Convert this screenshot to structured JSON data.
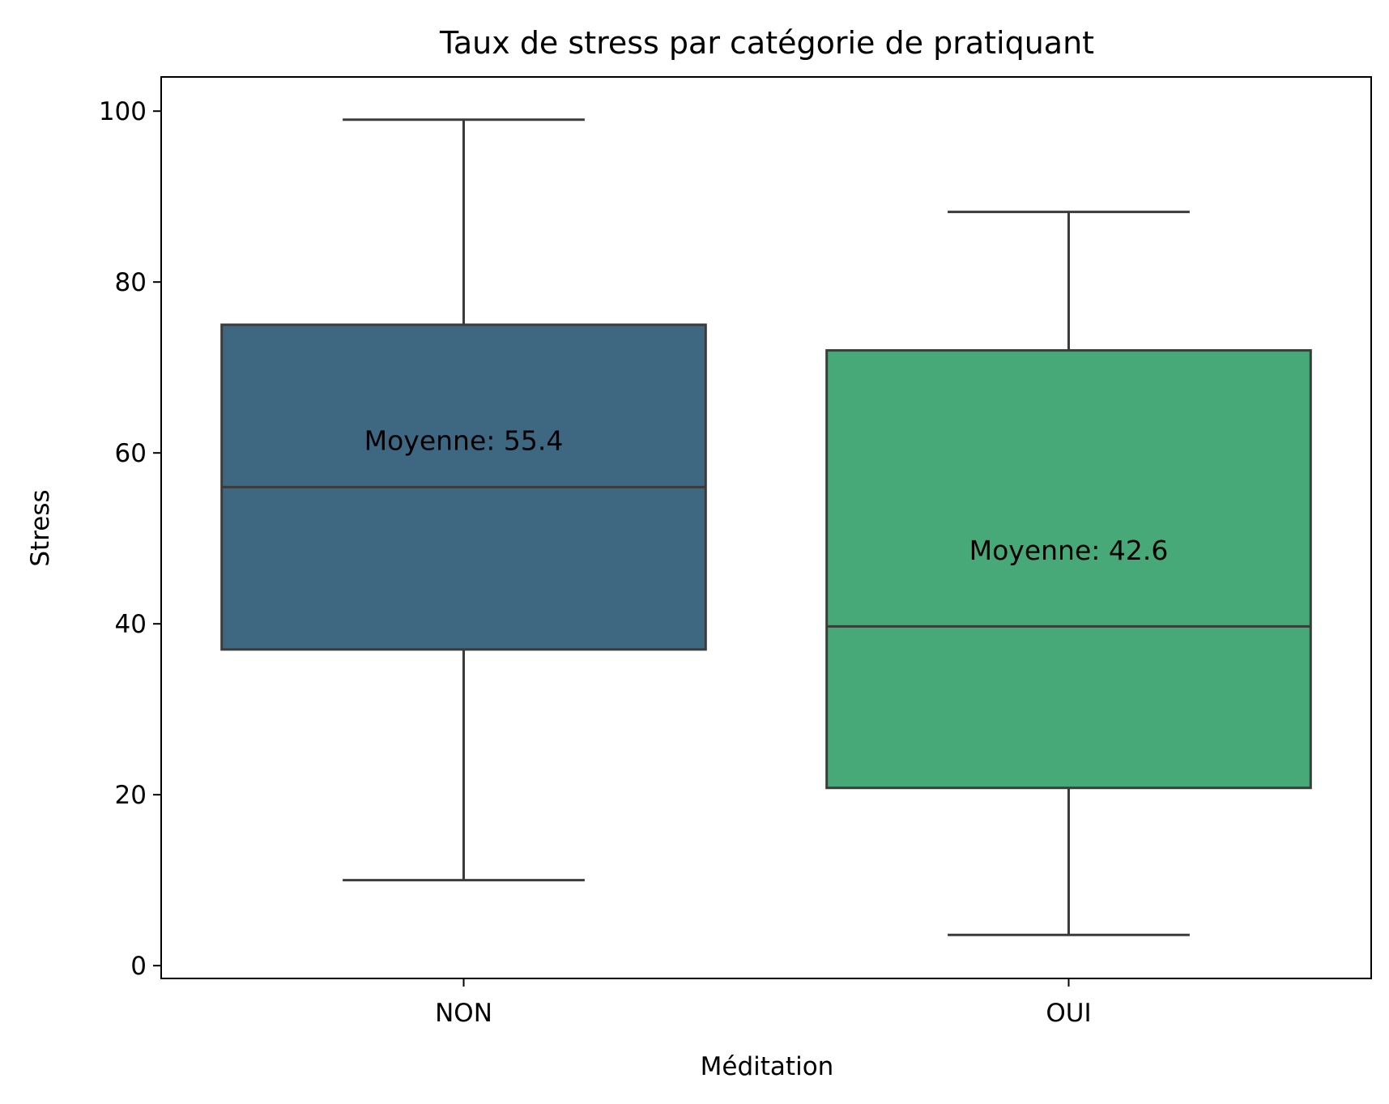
{
  "chart_data": {
    "type": "box",
    "title": "Taux de stress par catégorie de pratiquant",
    "xlabel": "Méditation",
    "ylabel": "Stress",
    "ylim": [
      -1.5,
      104
    ],
    "yticks": [
      0,
      20,
      40,
      60,
      80,
      100
    ],
    "grid": false,
    "categories": [
      "NON",
      "OUI"
    ],
    "boxes": [
      {
        "category": "NON",
        "whisker_low": 10,
        "q1": 37,
        "median": 56,
        "q3": 75,
        "whisker_high": 99,
        "mean": 55.4,
        "annotation": "Moyenne: 55.4",
        "color": "#3e6782"
      },
      {
        "category": "OUI",
        "whisker_low": 3.6,
        "q1": 20.8,
        "median": 39.7,
        "q3": 72,
        "whisker_high": 88.2,
        "mean": 42.6,
        "annotation": "Moyenne: 42.6",
        "color": "#47a878"
      }
    ],
    "edge_color": "#3b3b3b"
  }
}
